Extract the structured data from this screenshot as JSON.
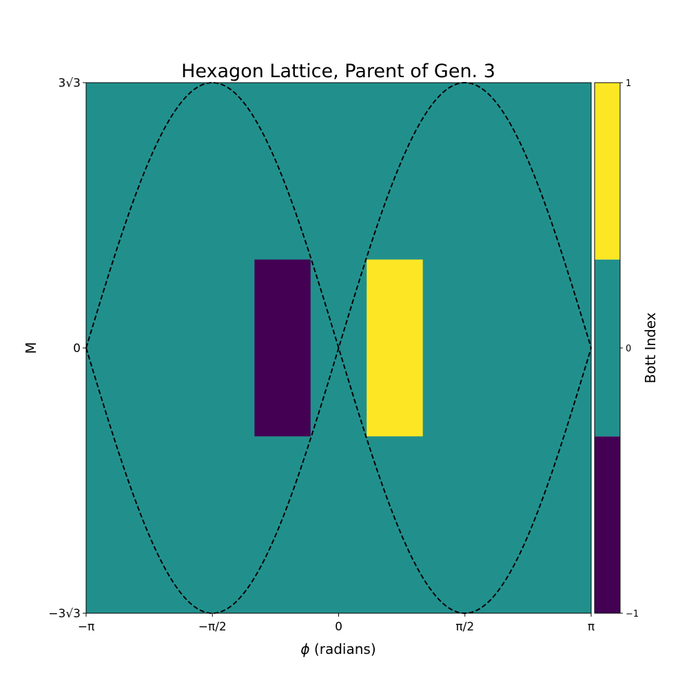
{
  "chart_data": {
    "type": "heatmap",
    "title": "Hexagon Lattice, Parent of Gen. 3",
    "xlabel": "ϕ (radians)",
    "ylabel": "M",
    "xlim": [
      -3.14159,
      3.14159
    ],
    "ylim": [
      -5.19615,
      5.19615
    ],
    "x_ticks": [
      {
        "value": -3.14159,
        "label": "−π"
      },
      {
        "value": -1.5708,
        "label": "−π/2"
      },
      {
        "value": 0,
        "label": "0"
      },
      {
        "value": 1.5708,
        "label": "π/2"
      },
      {
        "value": 3.14159,
        "label": "π"
      }
    ],
    "y_ticks": [
      {
        "value": -5.19615,
        "label": "−3√3"
      },
      {
        "value": 0,
        "label": "0"
      },
      {
        "value": 5.19615,
        "label": "3√3"
      }
    ],
    "background_value": 0,
    "regions": [
      {
        "x0": -1.047,
        "x1": -0.349,
        "y0": -1.732,
        "y1": 1.732,
        "value": -1
      },
      {
        "x0": 0.349,
        "x1": 1.047,
        "y0": -1.732,
        "y1": 1.732,
        "value": 1
      }
    ],
    "phase_boundaries": [
      {
        "name": "",
        "function": "3√3·sin(ϕ)",
        "style": "dashed"
      },
      {
        "name": "",
        "function": "-3√3·sin(ϕ)",
        "style": "dashed"
      }
    ],
    "colorbar": {
      "label": "Bott Index",
      "values": [
        -1,
        0,
        1
      ],
      "ticks": [
        {
          "value": -1,
          "label": "−1"
        },
        {
          "value": 0,
          "label": "0"
        },
        {
          "value": 1,
          "label": "1"
        }
      ]
    },
    "colors": {
      "-1": "#440154",
      "0": "#21908d",
      "1": "#fde725"
    },
    "grid": false,
    "legend": "none"
  }
}
